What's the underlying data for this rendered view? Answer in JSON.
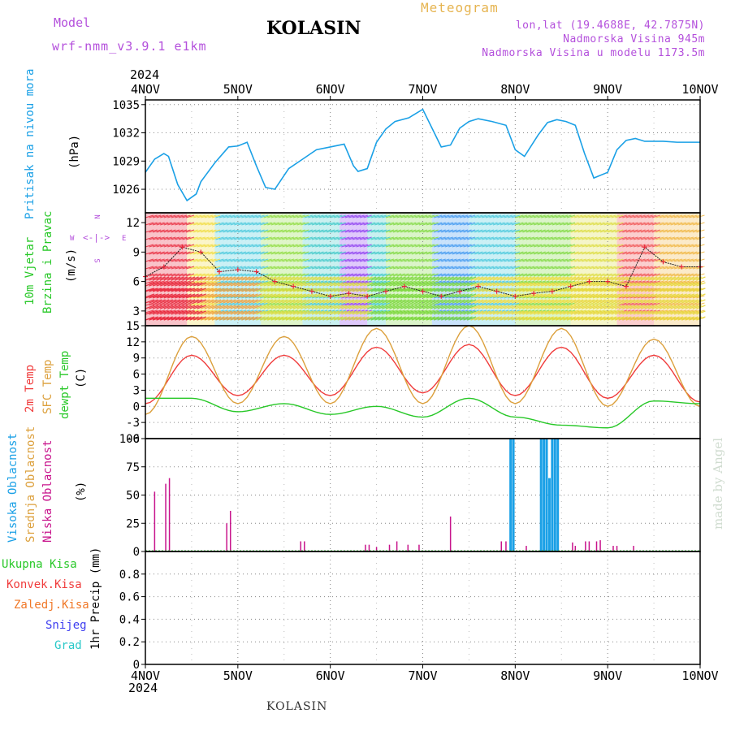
{
  "header": {
    "model_label": "Model",
    "model_name": "wrf-nmm_v3.9.1 e1km",
    "station": "KOLASIN",
    "product": "Meteogram",
    "lonlat": "lon,lat (19.4688E, 42.7875N)",
    "altitude": "Nadmorska Visina 945m",
    "model_altitude": "Nadmorska Visina u modelu 1173.5m",
    "footer_station": "KOLASIN",
    "credit": "made by Angel",
    "year_top": "2024",
    "year_bottom": "2024"
  },
  "colors": {
    "pressure": "#1aa0e6",
    "temp2m": "#f03c3c",
    "sfc_temp": "#dca03c",
    "dewpoint": "#28c828",
    "high_cloud": "#1aa0e6",
    "mid_cloud": "#dca03c",
    "low_cloud": "#c8148c",
    "precip_total": "#28c828",
    "precip_conv": "#f03c3c",
    "precip_frozen": "#f07828",
    "snow": "#3c3cf0",
    "graupel": "#28c8c8",
    "header_purple": "#b450dc",
    "header_gold": "#e6b450"
  },
  "x_axis": {
    "ticks": [
      "4NOV",
      "5NOV",
      "6NOV",
      "7NOV",
      "8NOV",
      "9NOV",
      "10NOV"
    ]
  },
  "panel_labels": {
    "pressure": {
      "title": "Pritisak na nivou mora",
      "unit": "(hPa)"
    },
    "wind": {
      "line1": "10m Vjetar",
      "line2": "Brzina i Pravac",
      "unit": "(m/s)"
    },
    "temp": {
      "l1": "2m Temp",
      "l2": "SFC Temp",
      "l3": "dewpt Temp",
      "unit": "(C)"
    },
    "cloud": {
      "l1": "Visoka Oblacnost",
      "l2": "Srednja Oblacnost",
      "l3": "Niska Oblacnost",
      "unit": "(%)"
    },
    "precip": {
      "l1": "Ukupna Kisa",
      "l2": "Konvek.Kisa",
      "l3": "Zaledj.Kisa",
      "l4": "Snijeg",
      "l5": "Grad",
      "unit": "1hr Precip (mm)"
    }
  },
  "compass": {
    "n": "N",
    "s": "S",
    "w": "W",
    "e": "E"
  },
  "chart_data": [
    {
      "type": "line",
      "name": "pressure",
      "x": [
        0,
        0.1,
        0.2,
        0.25,
        0.35,
        0.45,
        0.55,
        0.6,
        0.75,
        0.9,
        1.0,
        1.1,
        1.2,
        1.3,
        1.4,
        1.55,
        1.7,
        1.85,
        2.0,
        2.15,
        2.25,
        2.3,
        2.4,
        2.5,
        2.6,
        2.7,
        2.85,
        3.0,
        3.1,
        3.2,
        3.3,
        3.4,
        3.5,
        3.6,
        3.75,
        3.9,
        4.0,
        4.1,
        4.25,
        4.35,
        4.45,
        4.55,
        4.65,
        4.75,
        4.85,
        5.0,
        5.1,
        5.2,
        5.3,
        5.4,
        5.5,
        5.6,
        5.75,
        5.9,
        6.0
      ],
      "values": [
        1027.8,
        1029.2,
        1029.8,
        1029.5,
        1026.5,
        1024.8,
        1025.5,
        1026.8,
        1028.8,
        1030.5,
        1030.6,
        1031.0,
        1028.5,
        1026.2,
        1026.0,
        1028.2,
        1029.2,
        1030.2,
        1030.5,
        1030.8,
        1028.5,
        1027.9,
        1028.2,
        1031.0,
        1032.4,
        1033.2,
        1033.6,
        1034.5,
        1032.5,
        1030.5,
        1030.7,
        1032.5,
        1033.2,
        1033.5,
        1033.2,
        1032.8,
        1030.2,
        1029.5,
        1031.8,
        1033.1,
        1033.4,
        1033.2,
        1032.8,
        1029.8,
        1027.2,
        1027.8,
        1030.2,
        1031.2,
        1031.4,
        1031.1,
        1031.1,
        1031.1,
        1031.0,
        1031.0,
        1031.0
      ],
      "ylim": [
        1023.5,
        1035.5
      ],
      "yticks": [
        1026,
        1029,
        1032,
        1035
      ]
    },
    {
      "type": "line",
      "name": "wind_speed",
      "x": [
        0,
        0.2,
        0.4,
        0.6,
        0.8,
        1.0,
        1.2,
        1.4,
        1.6,
        1.8,
        2.0,
        2.2,
        2.4,
        2.6,
        2.8,
        3.0,
        3.2,
        3.4,
        3.6,
        3.8,
        4.0,
        4.2,
        4.4,
        4.6,
        4.8,
        5.0,
        5.2,
        5.4,
        5.6,
        5.8,
        6.0
      ],
      "values": [
        6.5,
        7.5,
        9.5,
        9.0,
        7.0,
        7.2,
        7.0,
        6.0,
        5.5,
        5.0,
        4.5,
        4.8,
        4.5,
        5.0,
        5.5,
        5.0,
        4.5,
        5.0,
        5.5,
        5.0,
        4.5,
        4.8,
        5.0,
        5.5,
        6.0,
        6.0,
        5.5,
        9.5,
        8.0,
        7.5,
        7.5
      ],
      "ylim": [
        1.5,
        13.0
      ],
      "yticks": [
        3,
        6,
        9,
        12
      ]
    },
    {
      "type": "line",
      "name": "temperature",
      "x": [
        0,
        0.5,
        1.0,
        1.5,
        2.0,
        2.5,
        3.0,
        3.5,
        4.0,
        4.5,
        5.0,
        5.5,
        6.0
      ],
      "series": [
        {
          "name": "2m Temp",
          "values": [
            0.5,
            9.5,
            2.0,
            9.5,
            2.0,
            11.0,
            2.5,
            11.5,
            2.0,
            11.0,
            1.5,
            9.5,
            0.8
          ]
        },
        {
          "name": "SFC Temp",
          "values": [
            -1.5,
            13.0,
            0.5,
            13.0,
            0.5,
            14.5,
            0.5,
            15.0,
            0.5,
            14.5,
            0.0,
            12.5,
            0.0
          ]
        },
        {
          "name": "dewpt Temp",
          "values": [
            1.5,
            1.5,
            -1.0,
            0.5,
            -1.5,
            0.0,
            -2.0,
            1.5,
            -2.0,
            -3.5,
            -4.0,
            1.0,
            0.5
          ]
        }
      ],
      "ylim": [
        -6,
        15
      ],
      "yticks": [
        -6,
        -3,
        0,
        3,
        6,
        9,
        12,
        15
      ]
    },
    {
      "type": "bar",
      "name": "cloud_cover",
      "series": [
        {
          "name": "Visoka Oblacnost",
          "x": [
            3.95,
            3.98,
            4.28,
            4.31,
            4.34,
            4.37,
            4.4,
            4.43,
            4.46
          ],
          "values": [
            100,
            100,
            100,
            100,
            100,
            65,
            100,
            100,
            100
          ]
        },
        {
          "name": "Niska Oblacnost",
          "x": [
            0.1,
            0.22,
            0.26,
            0.88,
            0.92,
            1.68,
            1.72,
            2.38,
            2.42,
            2.5,
            2.64,
            2.72,
            2.84,
            2.96,
            3.3,
            3.85,
            3.9,
            4.12,
            4.62,
            4.65,
            4.76,
            4.8,
            4.88,
            4.92,
            5.06,
            5.1,
            5.28
          ],
          "values": [
            53,
            60,
            65,
            25,
            36,
            9,
            9,
            6,
            6,
            4,
            6,
            9,
            6,
            6,
            31,
            9,
            9,
            5,
            8,
            5,
            9,
            9,
            9,
            10,
            5,
            5,
            5
          ]
        }
      ],
      "ylim": [
        0,
        100
      ],
      "yticks": [
        0,
        25,
        50,
        75,
        100
      ]
    },
    {
      "type": "bar",
      "name": "precipitation",
      "series": [
        {
          "name": "Ukupna Kisa",
          "values": []
        },
        {
          "name": "Konvek.Kisa",
          "values": []
        },
        {
          "name": "Zaledj.Kisa",
          "values": []
        },
        {
          "name": "Snijeg",
          "values": []
        },
        {
          "name": "Grad",
          "values": []
        }
      ],
      "ylim": [
        0,
        1.0
      ],
      "yticks": [
        "0",
        "0.2",
        "0.4",
        "0.6",
        "0.8"
      ]
    }
  ]
}
